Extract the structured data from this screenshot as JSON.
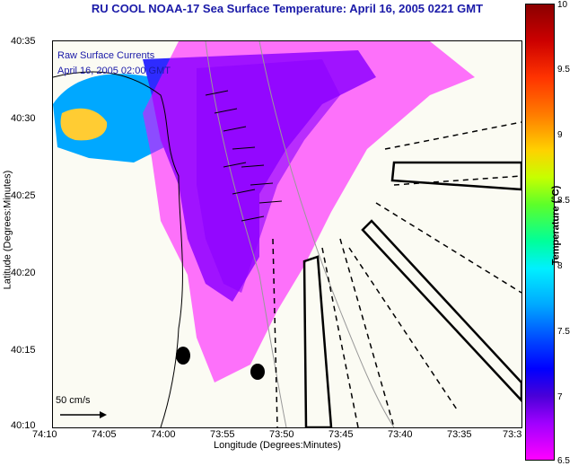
{
  "title": "RU COOL  NOAA-17  Sea Surface Temperature:  April 16, 2005 0221 GMT",
  "legend": {
    "currents_title": "Raw Surface Currents",
    "currents_time": "April 16, 2005 02:00 GMT",
    "scale_label": "50 cm/s"
  },
  "axes": {
    "xlabel": "Longitude (Degrees:Minutes)",
    "ylabel": "Latitude (Degrees:Minutes)",
    "x_ticks": [
      "74:10",
      "74:05",
      "74:00",
      "73:55",
      "73:50",
      "73:45",
      "73:40",
      "73:35",
      "73:3"
    ],
    "y_ticks": [
      "40:35",
      "40:30",
      "40:25",
      "40:20",
      "40:15",
      "40:10"
    ]
  },
  "colorbar": {
    "title": "Temperature (°C)",
    "ticks": [
      "10",
      "9.5",
      "9",
      "8.5",
      "8",
      "7.5",
      "7",
      "6.5"
    ]
  }
}
